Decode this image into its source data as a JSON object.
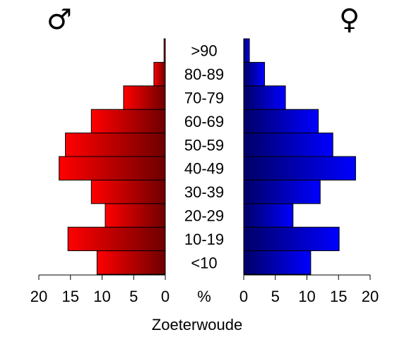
{
  "chart_data": {
    "type": "bar",
    "subtype": "population-pyramid",
    "title": "Zoeterwoude",
    "unit_label": "%",
    "symbols": {
      "male": "♂",
      "female": "♀"
    },
    "categories": [
      "<10",
      "10-19",
      "20-29",
      "30-39",
      "40-49",
      "50-59",
      "60-69",
      "70-79",
      "80-89",
      ">90"
    ],
    "series": [
      {
        "side": "left",
        "values": [
          10.8,
          15.4,
          9.5,
          11.7,
          16.8,
          15.8,
          11.7,
          6.6,
          1.8,
          0.2
        ],
        "color_light": "#ff0000",
        "color_dark": "#6e0000"
      },
      {
        "side": "right",
        "values": [
          10.6,
          15.1,
          7.8,
          12.1,
          17.7,
          14.1,
          11.8,
          6.6,
          3.3,
          0.9
        ],
        "color_light": "#0000ff",
        "color_dark": "#000066"
      }
    ],
    "xlim": [
      0,
      20
    ],
    "ticks": [
      20,
      15,
      10,
      5,
      0
    ],
    "ticks_right": [
      0,
      5,
      10,
      15,
      20
    ]
  }
}
